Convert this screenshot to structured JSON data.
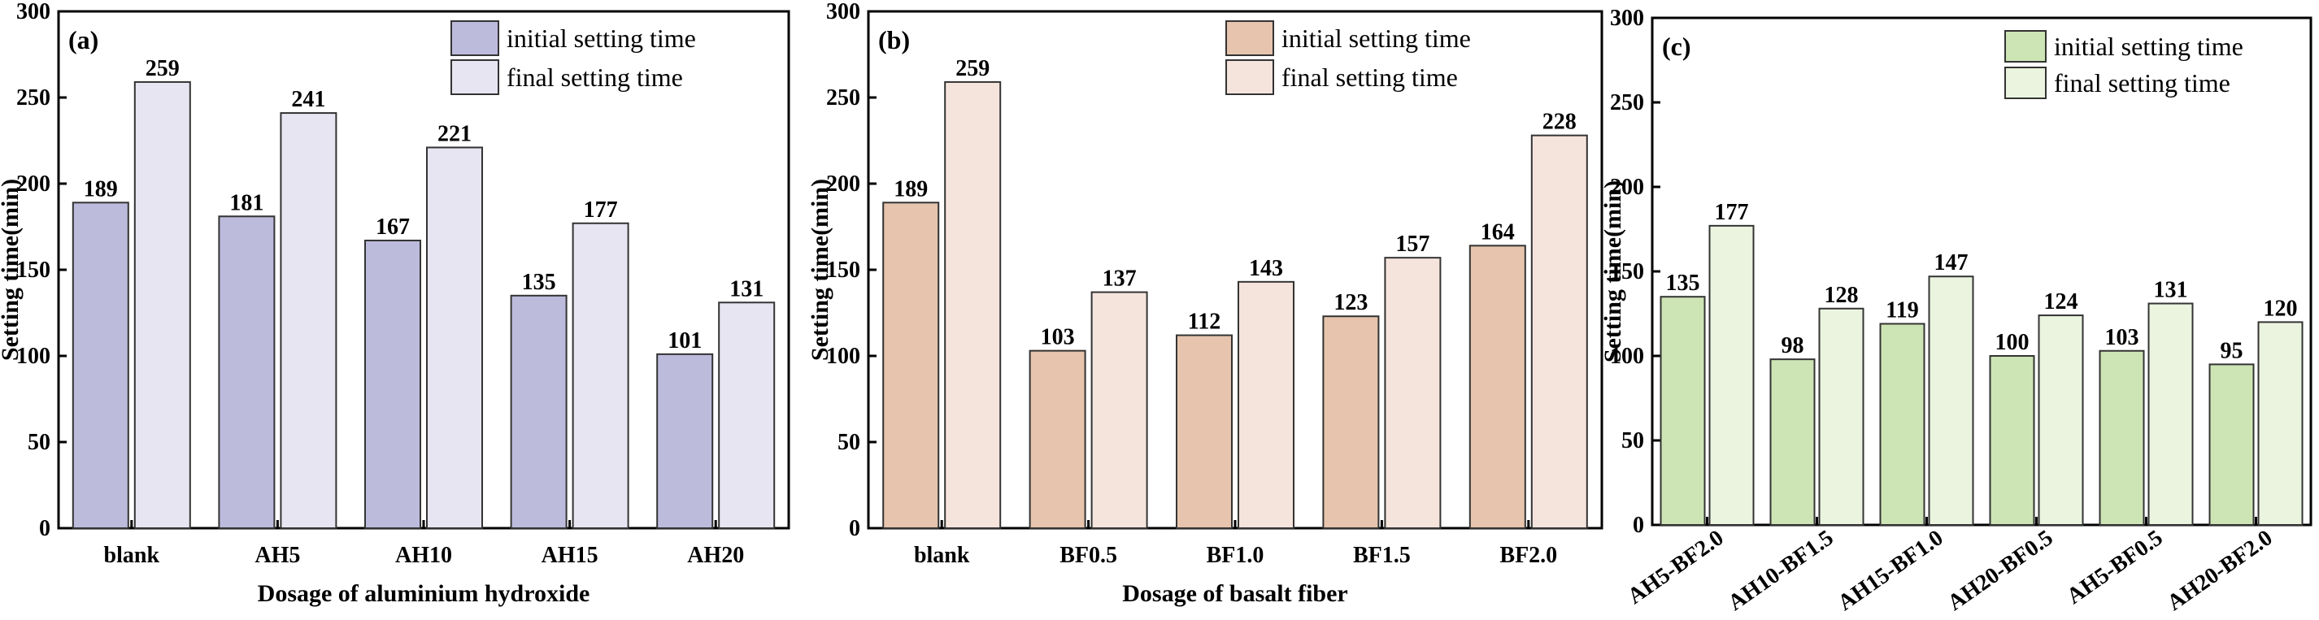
{
  "chart_data": [
    {
      "type": "bar",
      "panel_label": "(a)",
      "xlabel": "Dosage of aluminium hydroxide",
      "ylabel": "Setting time(min)",
      "ylim": [
        0,
        300
      ],
      "yticks": [
        0,
        50,
        100,
        150,
        200,
        250,
        300
      ],
      "grid": false,
      "legend_position": "top-right",
      "categories": [
        "blank",
        "AH5",
        "AH10",
        "AH15",
        "AH20"
      ],
      "series": [
        {
          "name": "initial setting time",
          "color": "#bdbbdc",
          "values": [
            189,
            181,
            167,
            135,
            101
          ]
        },
        {
          "name": "final setting time",
          "color": "#e6e5f1",
          "values": [
            259,
            241,
            221,
            177,
            131
          ]
        }
      ]
    },
    {
      "type": "bar",
      "panel_label": "(b)",
      "xlabel": "Dosage of basalt fiber",
      "ylabel": "Setting time(min)",
      "ylim": [
        0,
        300
      ],
      "yticks": [
        0,
        50,
        100,
        150,
        200,
        250,
        300
      ],
      "grid": false,
      "legend_position": "top-right",
      "categories": [
        "blank",
        "BF0.5",
        "BF1.0",
        "BF1.5",
        "BF2.0"
      ],
      "series": [
        {
          "name": "initial setting time",
          "color": "#e6c4ad",
          "values": [
            189,
            103,
            112,
            123,
            164
          ]
        },
        {
          "name": "final setting time",
          "color": "#f5e4dc",
          "values": [
            259,
            137,
            143,
            157,
            228
          ]
        }
      ]
    },
    {
      "type": "bar",
      "panel_label": "(c)",
      "xlabel": "",
      "ylabel": "Setting time(min)",
      "ylim": [
        0,
        300
      ],
      "yticks": [
        0,
        50,
        100,
        150,
        200,
        250,
        300
      ],
      "grid": false,
      "legend_position": "top-right",
      "categories": [
        "AH5-BF2.0",
        "AH10-BF1.5",
        "AH15-BF1.0",
        "AH20-BF0.5",
        "AH5-BF0.5",
        "AH20-BF2.0"
      ],
      "series": [
        {
          "name": "initial setting time",
          "color": "#cde5b4",
          "values": [
            135,
            98,
            119,
            100,
            103,
            95
          ]
        },
        {
          "name": "final setting time",
          "color": "#eaf4df",
          "values": [
            177,
            128,
            147,
            124,
            131,
            120
          ]
        }
      ]
    }
  ]
}
